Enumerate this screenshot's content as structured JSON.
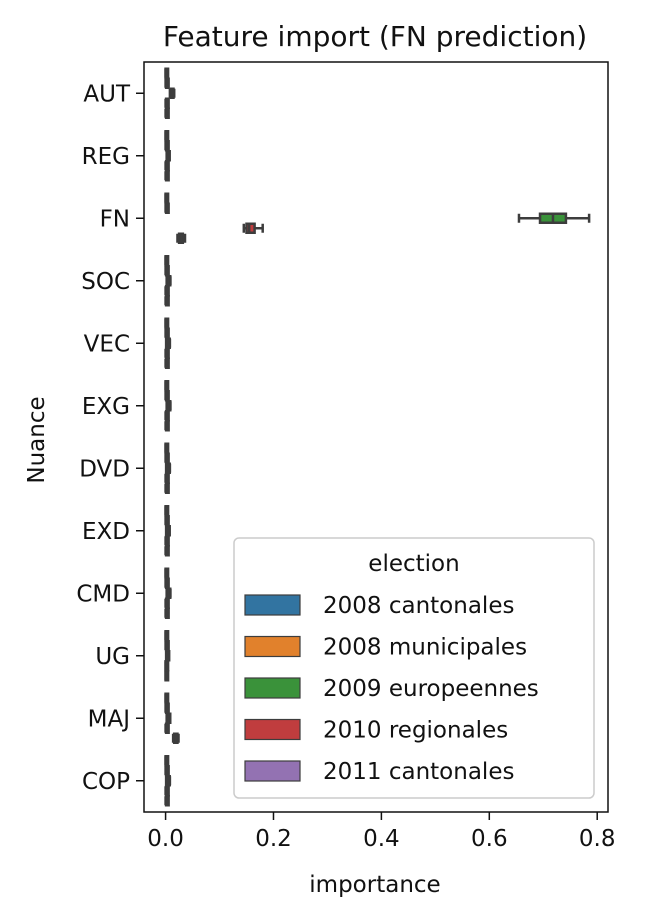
{
  "chart_data": {
    "type": "box",
    "orientation": "horizontal",
    "title": "Feature import (FN prediction)",
    "xlabel": "importance",
    "ylabel": "Nuance",
    "xlim": [
      -0.04,
      0.82
    ],
    "xticks": [
      0.0,
      0.2,
      0.4,
      0.6,
      0.8
    ],
    "xtick_labels": [
      "0.0",
      "0.2",
      "0.4",
      "0.6",
      "0.8"
    ],
    "categories": [
      "AUT",
      "REG",
      "FN",
      "SOC",
      "VEC",
      "EXG",
      "DVD",
      "EXD",
      "CMD",
      "UG",
      "MAJ",
      "COP"
    ],
    "legend": {
      "title": "election",
      "position": "lower-right",
      "entries": [
        "2008 cantonales",
        "2008 municipales",
        "2009 europeennes",
        "2010 regionales",
        "2011 cantonales"
      ]
    },
    "series": [
      {
        "name": "2008 cantonales",
        "color": "#3274a1",
        "boxes": [
          {
            "q1": 0.0,
            "median": 0.001,
            "q3": 0.002,
            "whisker_low": 0.0,
            "whisker_high": 0.003
          },
          {
            "q1": 0.0,
            "median": 0.001,
            "q3": 0.002,
            "whisker_low": 0.0,
            "whisker_high": 0.003
          },
          {
            "q1": 0.0,
            "median": 0.001,
            "q3": 0.002,
            "whisker_low": 0.0,
            "whisker_high": 0.003
          },
          {
            "q1": 0.0,
            "median": 0.001,
            "q3": 0.002,
            "whisker_low": 0.0,
            "whisker_high": 0.003
          },
          {
            "q1": 0.0,
            "median": 0.001,
            "q3": 0.002,
            "whisker_low": 0.0,
            "whisker_high": 0.003
          },
          {
            "q1": 0.0,
            "median": 0.001,
            "q3": 0.002,
            "whisker_low": 0.0,
            "whisker_high": 0.003
          },
          {
            "q1": 0.0,
            "median": 0.001,
            "q3": 0.002,
            "whisker_low": 0.0,
            "whisker_high": 0.003
          },
          {
            "q1": 0.0,
            "median": 0.001,
            "q3": 0.002,
            "whisker_low": 0.0,
            "whisker_high": 0.003
          },
          {
            "q1": 0.0,
            "median": 0.001,
            "q3": 0.002,
            "whisker_low": 0.0,
            "whisker_high": 0.003
          },
          {
            "q1": 0.0,
            "median": 0.001,
            "q3": 0.002,
            "whisker_low": 0.0,
            "whisker_high": 0.003
          },
          {
            "q1": 0.0,
            "median": 0.001,
            "q3": 0.002,
            "whisker_low": 0.0,
            "whisker_high": 0.003
          },
          {
            "q1": 0.0,
            "median": 0.001,
            "q3": 0.002,
            "whisker_low": 0.0,
            "whisker_high": 0.003
          }
        ]
      },
      {
        "name": "2008 municipales",
        "color": "#e1812c",
        "boxes": [
          {
            "q1": 0.001,
            "median": 0.002,
            "q3": 0.003,
            "whisker_low": 0.0,
            "whisker_high": 0.004
          },
          {
            "q1": 0.001,
            "median": 0.002,
            "q3": 0.003,
            "whisker_low": 0.0,
            "whisker_high": 0.004
          },
          {
            "q1": 0.001,
            "median": 0.002,
            "q3": 0.003,
            "whisker_low": 0.0,
            "whisker_high": 0.004
          },
          {
            "q1": 0.001,
            "median": 0.002,
            "q3": 0.003,
            "whisker_low": 0.0,
            "whisker_high": 0.004
          },
          {
            "q1": 0.001,
            "median": 0.002,
            "q3": 0.003,
            "whisker_low": 0.0,
            "whisker_high": 0.004
          },
          {
            "q1": 0.001,
            "median": 0.002,
            "q3": 0.003,
            "whisker_low": 0.0,
            "whisker_high": 0.004
          },
          {
            "q1": 0.001,
            "median": 0.002,
            "q3": 0.003,
            "whisker_low": 0.0,
            "whisker_high": 0.004
          },
          {
            "q1": 0.001,
            "median": 0.002,
            "q3": 0.003,
            "whisker_low": 0.0,
            "whisker_high": 0.004
          },
          {
            "q1": 0.001,
            "median": 0.002,
            "q3": 0.003,
            "whisker_low": 0.0,
            "whisker_high": 0.004
          },
          {
            "q1": 0.001,
            "median": 0.002,
            "q3": 0.003,
            "whisker_low": 0.0,
            "whisker_high": 0.004
          },
          {
            "q1": 0.001,
            "median": 0.002,
            "q3": 0.003,
            "whisker_low": 0.0,
            "whisker_high": 0.004
          },
          {
            "q1": 0.001,
            "median": 0.002,
            "q3": 0.003,
            "whisker_low": 0.0,
            "whisker_high": 0.004
          }
        ]
      },
      {
        "name": "2009 europeennes",
        "color": "#3a923a",
        "boxes": [
          {
            "q1": 0.01,
            "median": 0.012,
            "q3": 0.014,
            "whisker_low": 0.008,
            "whisker_high": 0.016
          },
          {
            "q1": 0.003,
            "median": 0.004,
            "q3": 0.005,
            "whisker_low": 0.002,
            "whisker_high": 0.006
          },
          {
            "q1": 0.694,
            "median": 0.718,
            "q3": 0.742,
            "whisker_low": 0.655,
            "whisker_high": 0.785
          },
          {
            "q1": 0.004,
            "median": 0.005,
            "q3": 0.007,
            "whisker_low": 0.002,
            "whisker_high": 0.009
          },
          {
            "q1": 0.003,
            "median": 0.004,
            "q3": 0.006,
            "whisker_low": 0.001,
            "whisker_high": 0.008
          },
          {
            "q1": 0.004,
            "median": 0.005,
            "q3": 0.007,
            "whisker_low": 0.002,
            "whisker_high": 0.009
          },
          {
            "q1": 0.003,
            "median": 0.004,
            "q3": 0.006,
            "whisker_low": 0.001,
            "whisker_high": 0.008
          },
          {
            "q1": 0.003,
            "median": 0.004,
            "q3": 0.005,
            "whisker_low": 0.001,
            "whisker_high": 0.007
          },
          {
            "q1": 0.004,
            "median": 0.005,
            "q3": 0.007,
            "whisker_low": 0.002,
            "whisker_high": 0.009
          },
          {
            "q1": 0.002,
            "median": 0.003,
            "q3": 0.004,
            "whisker_low": 0.001,
            "whisker_high": 0.005
          },
          {
            "q1": 0.004,
            "median": 0.005,
            "q3": 0.006,
            "whisker_low": 0.002,
            "whisker_high": 0.008
          },
          {
            "q1": 0.003,
            "median": 0.004,
            "q3": 0.006,
            "whisker_low": 0.001,
            "whisker_high": 0.008
          }
        ]
      },
      {
        "name": "2010 regionales",
        "color": "#c03d3e",
        "boxes": [
          {
            "q1": 0.001,
            "median": 0.002,
            "q3": 0.003,
            "whisker_low": 0.0,
            "whisker_high": 0.004
          },
          {
            "q1": 0.001,
            "median": 0.002,
            "q3": 0.003,
            "whisker_low": 0.0,
            "whisker_high": 0.004
          },
          {
            "q1": 0.15,
            "median": 0.155,
            "q3": 0.165,
            "whisker_low": 0.145,
            "whisker_high": 0.18
          },
          {
            "q1": 0.001,
            "median": 0.002,
            "q3": 0.003,
            "whisker_low": 0.0,
            "whisker_high": 0.004
          },
          {
            "q1": 0.001,
            "median": 0.002,
            "q3": 0.003,
            "whisker_low": 0.0,
            "whisker_high": 0.004
          },
          {
            "q1": 0.001,
            "median": 0.002,
            "q3": 0.003,
            "whisker_low": 0.0,
            "whisker_high": 0.004
          },
          {
            "q1": 0.001,
            "median": 0.002,
            "q3": 0.003,
            "whisker_low": 0.0,
            "whisker_high": 0.004
          },
          {
            "q1": 0.001,
            "median": 0.002,
            "q3": 0.003,
            "whisker_low": 0.0,
            "whisker_high": 0.004
          },
          {
            "q1": 0.001,
            "median": 0.002,
            "q3": 0.003,
            "whisker_low": 0.0,
            "whisker_high": 0.004
          },
          {
            "q1": 0.0,
            "median": 0.001,
            "q3": 0.002,
            "whisker_low": 0.0,
            "whisker_high": 0.003
          },
          {
            "q1": 0.001,
            "median": 0.002,
            "q3": 0.003,
            "whisker_low": 0.0,
            "whisker_high": 0.004
          },
          {
            "q1": 0.001,
            "median": 0.002,
            "q3": 0.003,
            "whisker_low": 0.0,
            "whisker_high": 0.004
          }
        ]
      },
      {
        "name": "2011 cantonales",
        "color": "#9372b2",
        "boxes": [
          {
            "q1": 0.001,
            "median": 0.002,
            "q3": 0.003,
            "whisker_low": 0.0,
            "whisker_high": 0.004
          },
          {
            "q1": 0.001,
            "median": 0.002,
            "q3": 0.003,
            "whisker_low": 0.0,
            "whisker_high": 0.004
          },
          {
            "q1": 0.025,
            "median": 0.028,
            "q3": 0.032,
            "whisker_low": 0.022,
            "whisker_high": 0.036
          },
          {
            "q1": 0.001,
            "median": 0.002,
            "q3": 0.003,
            "whisker_low": 0.0,
            "whisker_high": 0.004
          },
          {
            "q1": 0.001,
            "median": 0.002,
            "q3": 0.003,
            "whisker_low": 0.0,
            "whisker_high": 0.004
          },
          {
            "q1": 0.001,
            "median": 0.002,
            "q3": 0.003,
            "whisker_low": 0.0,
            "whisker_high": 0.004
          },
          {
            "q1": 0.001,
            "median": 0.002,
            "q3": 0.003,
            "whisker_low": 0.0,
            "whisker_high": 0.004
          },
          {
            "q1": 0.001,
            "median": 0.002,
            "q3": 0.003,
            "whisker_low": 0.0,
            "whisker_high": 0.004
          },
          {
            "q1": 0.001,
            "median": 0.002,
            "q3": 0.003,
            "whisker_low": 0.0,
            "whisker_high": 0.004
          },
          {
            "q1": 0.0,
            "median": 0.001,
            "q3": 0.002,
            "whisker_low": 0.0,
            "whisker_high": 0.003
          },
          {
            "q1": 0.016,
            "median": 0.019,
            "q3": 0.022,
            "whisker_low": 0.014,
            "whisker_high": 0.024
          },
          {
            "q1": 0.001,
            "median": 0.002,
            "q3": 0.003,
            "whisker_low": 0.0,
            "whisker_high": 0.004
          }
        ]
      }
    ]
  }
}
